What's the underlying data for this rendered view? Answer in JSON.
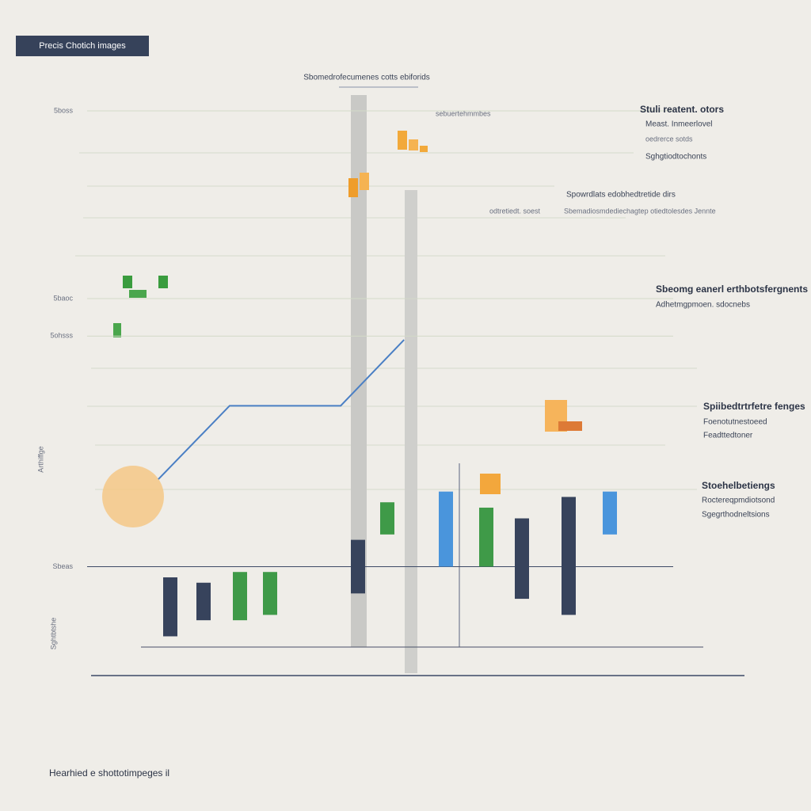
{
  "header": {
    "title": "Precis Chotich images"
  },
  "chart_data": {
    "type": "range-bar",
    "title": "Sbomedrofecumenes cotts ebiforids",
    "ylim": [
      0,
      100
    ],
    "yticks": [
      {
        "value": 15,
        "label": "Sbeas"
      },
      {
        "value": 58,
        "label": "5ohsss"
      },
      {
        "value": 65,
        "label": "5baoc"
      },
      {
        "value": 100,
        "label": "5boss"
      }
    ],
    "grid": true,
    "categories": [
      null,
      null,
      null,
      null,
      null,
      null,
      null,
      null,
      null,
      null,
      null
    ],
    "colors": [
      "#37435c",
      "#37435c",
      "#3f9a48",
      "#3f9a48",
      "#37435c",
      "#3f9a48",
      "#4a95dc",
      "#3f9a48",
      "#37435c",
      "#37435c",
      "#4a95dc"
    ],
    "lows": [
      2,
      5,
      5,
      6,
      10,
      21,
      15,
      15,
      9,
      6,
      21
    ],
    "highs": [
      13,
      12,
      14,
      14,
      20,
      27,
      29,
      26,
      24,
      28,
      29
    ],
    "line": {
      "color": "#4a7fc4",
      "xlim": [
        0,
        100
      ],
      "x": [
        10.3,
        21.2,
        38.2,
        47.9
      ],
      "values": [
        31.3,
        45,
        45,
        57.3
      ]
    },
    "annotations": [
      "Stuli reatent. otors",
      "Meast. Inmeerlovel",
      "oedrerce sotds",
      "Sghgtiodtochonts",
      "sebuertehmmbes",
      "Spowrdlats edobhedtretide dirs",
      "odtretiedt. soest",
      "Sbemadiosmdediechagtep otiedtolesdes Jennte",
      "Sbeomg eanerl erthbotsfergnents",
      "Adhetmgpmoen. sdocnebs",
      "Spiibedtrtrfetre fenges",
      "Foenotutnestoeed",
      "Feadttedtoner",
      "Stoehelbetiengs",
      "Roctereqpmdiotsond",
      "Sgegrthodneltsions",
      "Arthiffge",
      "Sghtbtshe"
    ]
  },
  "footer": {
    "text": "Hearhied e shottotimpeges il"
  }
}
